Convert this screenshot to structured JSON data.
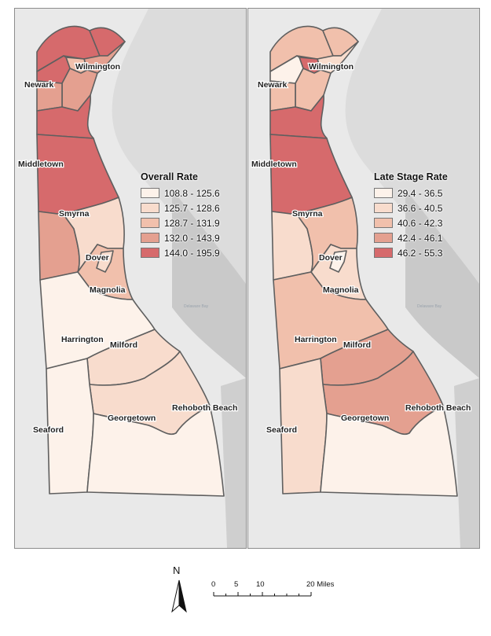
{
  "maps": [
    {
      "id": "overall",
      "legend_title": "Overall Rate",
      "classes": [
        {
          "label": "108.8 - 125.6",
          "color": "#fdf2ea"
        },
        {
          "label": "125.7 - 128.6",
          "color": "#f8dccd"
        },
        {
          "label": "128.7 - 131.9",
          "color": "#f1c0ac"
        },
        {
          "label": "132.0 - 143.9",
          "color": "#e4a090"
        },
        {
          "label": "144.0 - 195.9",
          "color": "#d66a6c"
        }
      ],
      "region_class": {
        "north_a": 4,
        "north_b": 4,
        "north_c": 3,
        "north_d": 3,
        "wilmington": 2,
        "newark_w": 4,
        "newark_e": 3,
        "mid_north": 4,
        "middletown": 4,
        "smyrna_w": 3,
        "smyrna_e": 1,
        "dover_area": 2,
        "dover_city": 1,
        "kent_south": 0,
        "milford": 1,
        "georgetown": 1,
        "seaford": 0,
        "rehoboth": 0
      }
    },
    {
      "id": "late",
      "legend_title": "Late Stage Rate",
      "classes": [
        {
          "label": "29.4 - 36.5",
          "color": "#fdf2ea"
        },
        {
          "label": "36.6 - 40.5",
          "color": "#f8dccd"
        },
        {
          "label": "40.6 - 42.3",
          "color": "#f1c0ac"
        },
        {
          "label": "42.4 - 46.1",
          "color": "#e4a090"
        },
        {
          "label": "46.2 - 55.3",
          "color": "#d66a6c"
        }
      ],
      "region_class": {
        "north_a": 2,
        "north_b": 2,
        "north_c": 1,
        "north_d": 2,
        "wilmington": 4,
        "newark_w": 0,
        "newark_e": 2,
        "mid_north": 4,
        "middletown": 4,
        "smyrna_w": 1,
        "smyrna_e": 2,
        "dover_area": 1,
        "dover_city": 0,
        "kent_south": 2,
        "milford": 3,
        "georgetown": 3,
        "seaford": 1,
        "rehoboth": 0
      }
    }
  ],
  "places": [
    "Newark",
    "Wilmington",
    "Middletown",
    "Smyrna",
    "Dover",
    "Magnolia",
    "Harrington",
    "Milford",
    "Georgetown",
    "Seaford",
    "Rehoboth Beach"
  ],
  "north_label": "N",
  "scale": {
    "ticks": [
      "0",
      "5",
      "10",
      "20 Miles"
    ]
  }
}
